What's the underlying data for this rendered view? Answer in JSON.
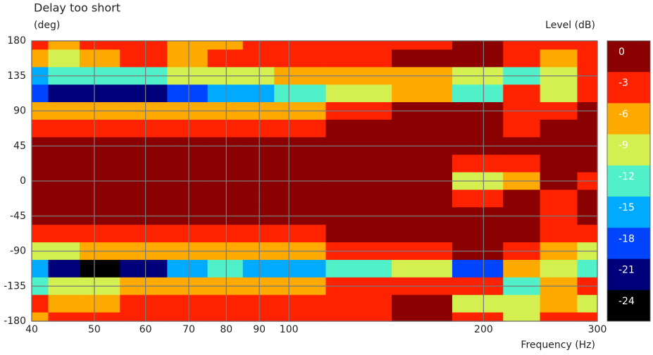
{
  "chart_data": {
    "type": "heatmap",
    "title": "Delay too short",
    "y_label": "(deg)",
    "x_label": "Frequency (Hz)",
    "colorbar_label": "Level (dB)",
    "x_scale": "log",
    "xlim": [
      40,
      300
    ],
    "xticks": [
      40,
      50,
      60,
      70,
      80,
      90,
      100,
      200,
      300
    ],
    "ylim": [
      -180,
      180
    ],
    "yticks": [
      180,
      135,
      90,
      45,
      0,
      -45,
      -90,
      -135,
      -180
    ],
    "grid": true,
    "x": [
      40,
      45,
      50,
      60,
      70,
      80,
      90,
      100,
      130,
      160,
      200,
      230,
      260,
      300
    ],
    "y": [
      180,
      157.5,
      135,
      112.5,
      90,
      67.5,
      45,
      22.5,
      0,
      -22.5,
      -45,
      -67.5,
      -90,
      -112.5,
      -135,
      -157.5,
      -180
    ],
    "z": [
      [
        -5,
        -8,
        -4,
        -5,
        -8,
        -7,
        -5,
        -4,
        -4,
        -4,
        -2,
        -5,
        -4,
        -6
      ],
      [
        -8,
        -10,
        -7,
        -6,
        -7,
        -6,
        -5,
        -5,
        -4,
        -2,
        -1,
        -6,
        -8,
        -5
      ],
      [
        -16,
        -15,
        -14,
        -13,
        -12,
        -11,
        -10,
        -9,
        -8,
        -7,
        -10,
        -14,
        -10,
        -5
      ],
      [
        -19,
        -22,
        -22,
        -22,
        -20,
        -16,
        -18,
        -14,
        -11,
        -9,
        -15,
        -6,
        -10,
        -4
      ],
      [
        -8,
        -9,
        -9,
        -9,
        -9,
        -8,
        -8,
        -7,
        -4,
        -2,
        -2,
        -5,
        -6,
        -3
      ],
      [
        -5,
        -5,
        -5,
        -4,
        -4,
        -4,
        -3.5,
        -3.5,
        -2,
        -1,
        -1,
        -4,
        -2,
        -2
      ],
      [
        -1,
        -1,
        -1,
        -1,
        -1,
        -1,
        -1,
        -1,
        -1,
        -1,
        -2,
        -2,
        -1,
        -2
      ],
      [
        -1,
        -1,
        -1,
        -1,
        -1,
        -1,
        -1,
        -1,
        -1,
        -1,
        -4,
        -5,
        -2,
        -3
      ],
      [
        -1,
        -1,
        -1,
        -1,
        -1,
        -1,
        -1,
        -1,
        -1,
        -2,
        -10,
        -8,
        -2,
        -4
      ],
      [
        -1,
        -1,
        -1,
        -1,
        -1,
        -1,
        -1,
        -1,
        -1,
        -2,
        -4,
        -3,
        -4,
        -2
      ],
      [
        -2,
        -1,
        -1,
        -1,
        -1,
        -1,
        -1,
        -1,
        -1,
        -1,
        -1,
        -1,
        -5,
        -3
      ],
      [
        -5,
        -5,
        -4,
        -4,
        -4,
        -4,
        -3.5,
        -3.5,
        -2,
        -1,
        -1,
        -2,
        -4,
        -4
      ],
      [
        -11,
        -10,
        -9,
        -9,
        -8,
        -9,
        -8,
        -8,
        -6,
        -4,
        -3,
        -4,
        -7,
        -12
      ],
      [
        -18,
        -22,
        -25,
        -23,
        -18,
        -15,
        -16,
        -16,
        -13,
        -10,
        -20,
        -8,
        -10,
        -14
      ],
      [
        -13,
        -10,
        -10,
        -8,
        -7,
        -7,
        -7,
        -7,
        -6,
        -5,
        -5,
        -15,
        -9,
        -5
      ],
      [
        -6,
        -9,
        -7,
        -5,
        -4,
        -4,
        -5,
        -5,
        -4,
        -2,
        -10,
        -12,
        -8,
        -11
      ],
      [
        -7,
        -6,
        -5,
        -4,
        -4,
        -4,
        -5,
        -4,
        -4,
        -2,
        -4,
        -10,
        -5,
        -6
      ]
    ],
    "colorbar": {
      "levels": [
        0,
        -3,
        -6,
        -9,
        -12,
        -15,
        -18,
        -21,
        -24
      ],
      "colors": [
        "#8b0000",
        "#ff2200",
        "#ffaa00",
        "#d4f050",
        "#50f0c8",
        "#00aaff",
        "#0044ff",
        "#00007a",
        "#000000"
      ]
    }
  }
}
